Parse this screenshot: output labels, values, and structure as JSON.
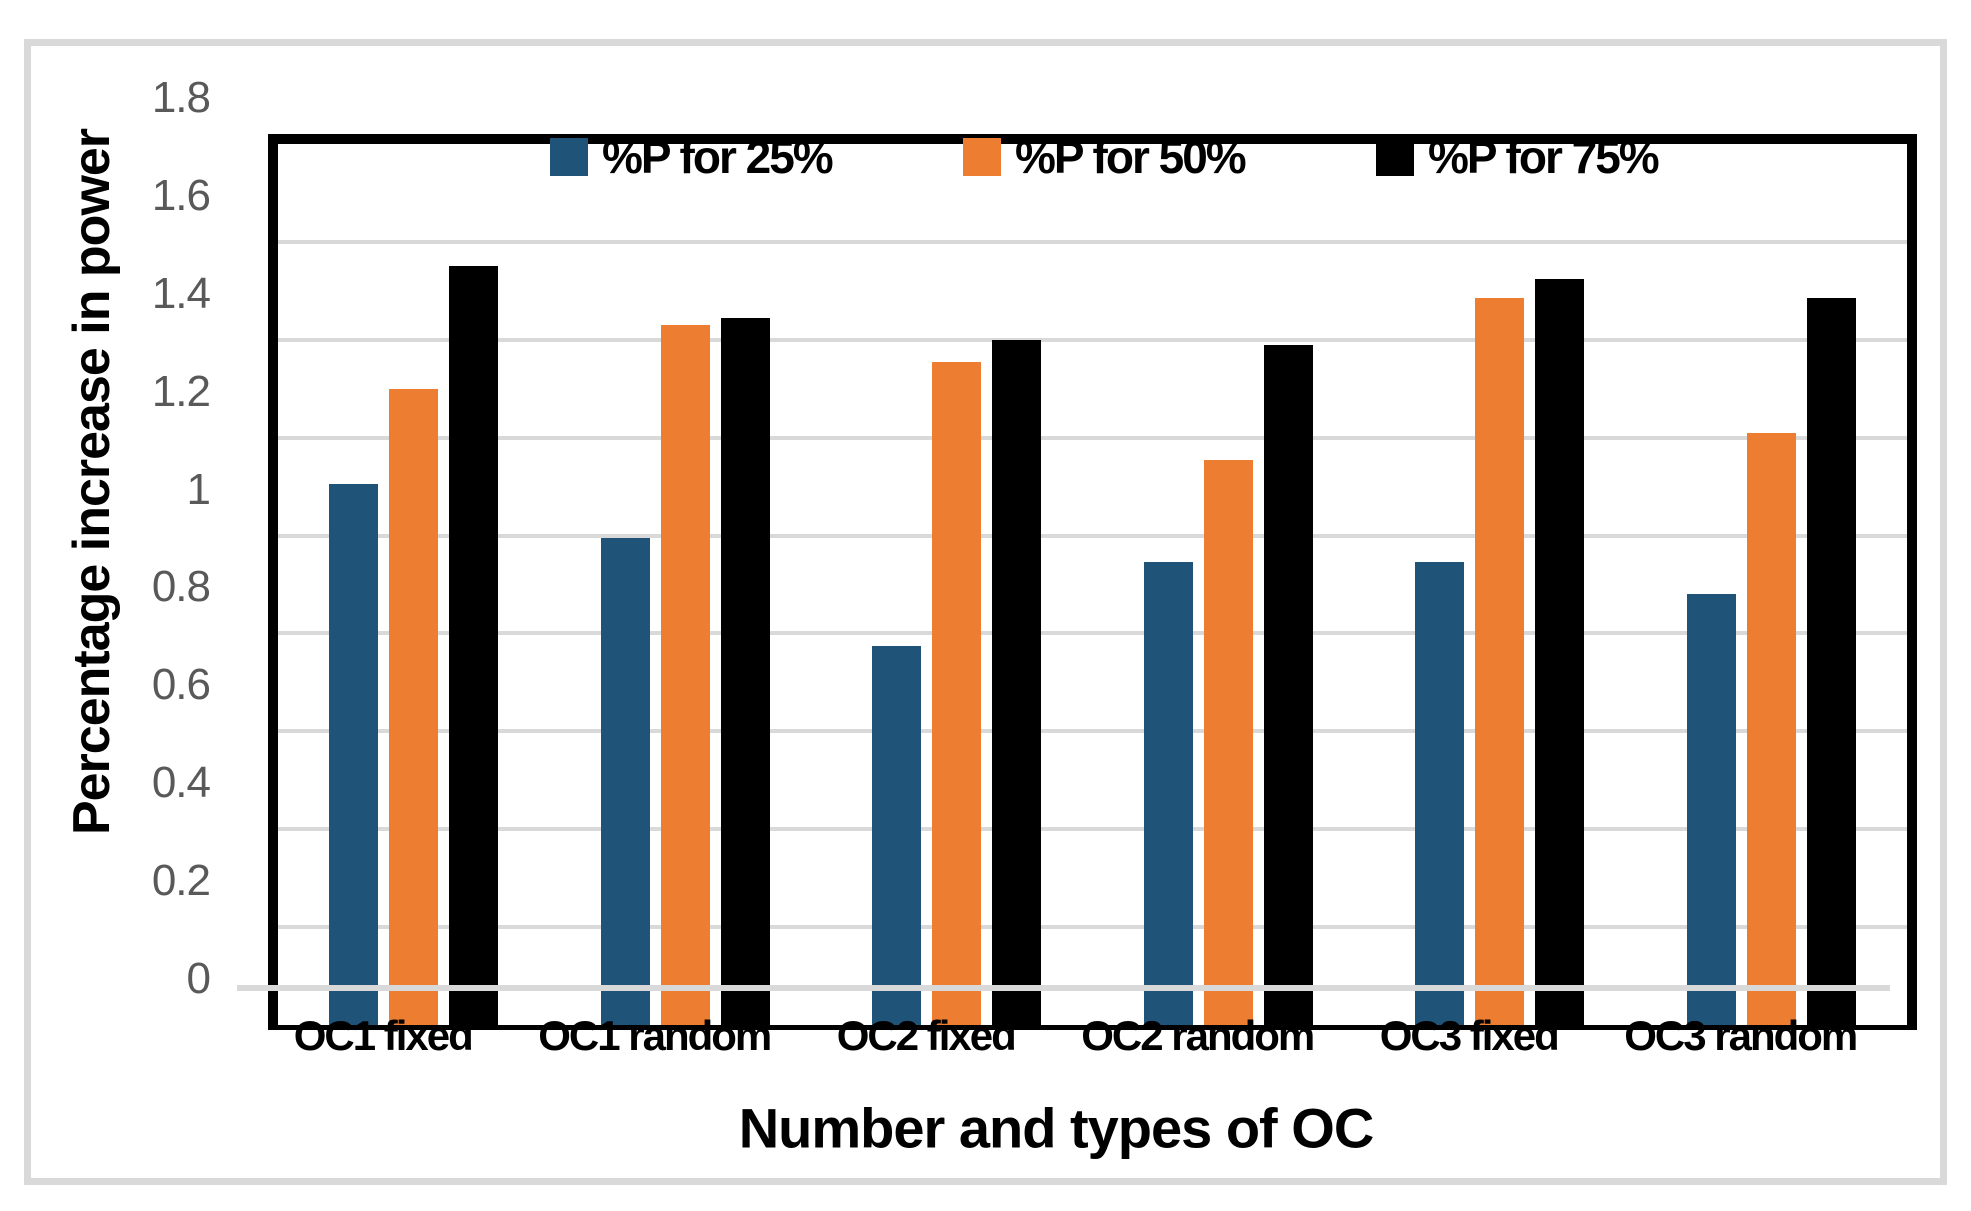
{
  "chart_data": {
    "type": "bar",
    "title": "",
    "categories": [
      "OC1 fixed",
      "OC1 random",
      "OC2 fixed",
      "OC2 random",
      "OC3 fixed",
      "OC3 random"
    ],
    "series": [
      {
        "name": "%P for 25%",
        "color": "#1F5378",
        "values": [
          1.105,
          0.995,
          0.775,
          0.945,
          0.945,
          0.88
        ]
      },
      {
        "name": "%P for 50%",
        "color": "#ED7D31",
        "values": [
          1.3,
          1.43,
          1.355,
          1.155,
          1.485,
          1.21
        ]
      },
      {
        "name": "%P for 75%",
        "color": "#000000",
        "values": [
          1.55,
          1.445,
          1.4,
          1.39,
          1.525,
          1.485
        ]
      }
    ],
    "xlabel": "Number and types of OC",
    "ylabel": "Percentage increase in power",
    "ylim": [
      0,
      1.8
    ],
    "ytick_step": 0.2,
    "ytick_labels": [
      "0",
      "0.2",
      "0.4",
      "0.6",
      "0.8",
      "1",
      "1.2",
      "1.4",
      "1.6",
      "1.8"
    ],
    "grid": true,
    "legend_position": "top-inside"
  },
  "colors": {
    "gridline": "#D9D9D9",
    "chart_frame": "#D9D9D9",
    "plot_border": "#000000",
    "tick_label": "#595959",
    "background": "#FFFFFF"
  }
}
